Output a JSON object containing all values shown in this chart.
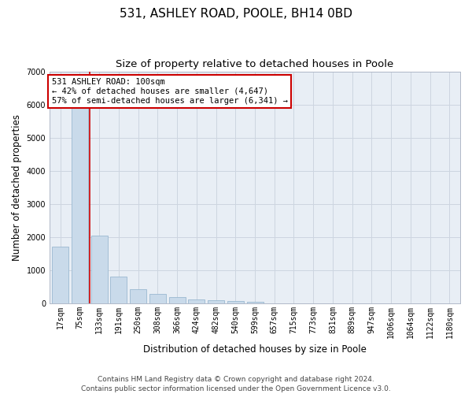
{
  "title": "531, ASHLEY ROAD, POOLE, BH14 0BD",
  "subtitle": "Size of property relative to detached houses in Poole",
  "xlabel": "Distribution of detached houses by size in Poole",
  "ylabel": "Number of detached properties",
  "categories": [
    "17sqm",
    "75sqm",
    "133sqm",
    "191sqm",
    "250sqm",
    "308sqm",
    "366sqm",
    "424sqm",
    "482sqm",
    "540sqm",
    "599sqm",
    "657sqm",
    "715sqm",
    "773sqm",
    "831sqm",
    "889sqm",
    "947sqm",
    "1006sqm",
    "1064sqm",
    "1122sqm",
    "1180sqm"
  ],
  "values": [
    1700,
    5900,
    2050,
    800,
    430,
    270,
    190,
    110,
    80,
    55,
    35,
    0,
    0,
    0,
    0,
    0,
    0,
    0,
    0,
    0,
    0
  ],
  "bar_color": "#c9daea",
  "bar_edge_color": "#9ab8d0",
  "vline_x_index": 1.5,
  "vline_color": "#cc0000",
  "annotation_text": "531 ASHLEY ROAD: 100sqm\n← 42% of detached houses are smaller (4,647)\n57% of semi-detached houses are larger (6,341) →",
  "annotation_box_color": "#ffffff",
  "annotation_box_edge_color": "#cc0000",
  "ylim": [
    0,
    7000
  ],
  "yticks": [
    0,
    1000,
    2000,
    3000,
    4000,
    5000,
    6000,
    7000
  ],
  "grid_color": "#cdd5e0",
  "bg_color": "#e8eef5",
  "footer": "Contains HM Land Registry data © Crown copyright and database right 2024.\nContains public sector information licensed under the Open Government Licence v3.0.",
  "title_fontsize": 11,
  "subtitle_fontsize": 9.5,
  "axis_label_fontsize": 8.5,
  "tick_fontsize": 7,
  "footer_fontsize": 6.5,
  "annotation_fontsize": 7.5
}
